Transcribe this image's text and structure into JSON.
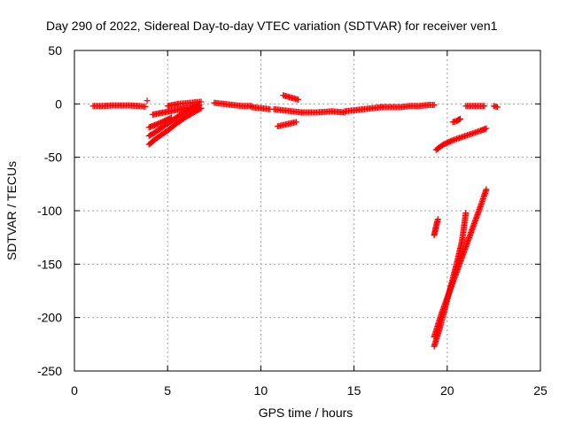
{
  "chart_data": {
    "type": "scatter",
    "title": "Day 290 of 2022, Sidereal Day-to-day VTEC variation (SDTVAR) for receiver ven1",
    "xlabel": "GPS time / hours",
    "ylabel": "SDTVAR / TECUs",
    "xlim": [
      0,
      25
    ],
    "ylim": [
      -250,
      50
    ],
    "grid": true,
    "marker": "plus",
    "marker_color": "#ff0000",
    "x_ticks": [
      {
        "value": 0,
        "label": "0"
      },
      {
        "value": 5,
        "label": "5"
      },
      {
        "value": 10,
        "label": "10"
      },
      {
        "value": 15,
        "label": "15"
      },
      {
        "value": 20,
        "label": "20"
      },
      {
        "value": 25,
        "label": "25"
      }
    ],
    "y_ticks": [
      {
        "value": 50,
        "label": "50"
      },
      {
        "value": 0,
        "label": "0"
      },
      {
        "value": -50,
        "label": "-50"
      },
      {
        "value": -100,
        "label": "-100"
      },
      {
        "value": -150,
        "label": "-150"
      },
      {
        "value": -200,
        "label": "-200"
      },
      {
        "value": -250,
        "label": "-250"
      }
    ],
    "series": [
      {
        "x": [
          1.0,
          1.5,
          2.0,
          2.5,
          3.0,
          3.5,
          3.8
        ],
        "y": [
          -2,
          -2,
          -1.5,
          -1.5,
          -1.5,
          -2,
          -2.5
        ]
      },
      {
        "x": [
          3.9
        ],
        "y": [
          3
        ]
      },
      {
        "x": [
          4.0,
          4.2,
          4.5,
          5.0,
          5.5,
          6.0,
          6.5,
          6.8
        ],
        "y": [
          -38,
          -35,
          -31,
          -25,
          -18,
          -12,
          -7,
          -4
        ]
      },
      {
        "x": [
          4.0,
          4.3,
          4.7,
          5.2,
          5.7,
          6.2,
          6.7
        ],
        "y": [
          -30,
          -27,
          -22,
          -16,
          -10,
          -5,
          -1
        ]
      },
      {
        "x": [
          4.0,
          4.3,
          4.7,
          5.2
        ],
        "y": [
          -22,
          -20,
          -17,
          -13
        ]
      },
      {
        "x": [
          4.2,
          4.8,
          5.4,
          6.0,
          6.6
        ],
        "y": [
          -10,
          -8,
          -6,
          -4,
          -2
        ]
      },
      {
        "x": [
          5.0,
          5.6,
          6.2,
          6.8
        ],
        "y": [
          -2,
          0,
          1,
          2
        ]
      },
      {
        "x": [
          7.5,
          8.0,
          8.5,
          9.0,
          9.5
        ],
        "y": [
          1,
          0,
          -1,
          -2,
          -2
        ]
      },
      {
        "x": [
          9.5,
          10.0,
          10.5
        ],
        "y": [
          -3,
          -4,
          -5
        ]
      },
      {
        "x": [
          10.7,
          11.2,
          11.7,
          12.2
        ],
        "y": [
          -5,
          -6,
          -7,
          -8
        ]
      },
      {
        "x": [
          11.2,
          11.6,
          12.0
        ],
        "y": [
          8,
          6,
          4
        ]
      },
      {
        "x": [
          10.9,
          11.4,
          11.9
        ],
        "y": [
          -21,
          -19,
          -17
        ]
      },
      {
        "x": [
          12.2,
          13.0,
          13.8,
          14.5
        ],
        "y": [
          -8,
          -8,
          -7,
          -8
        ]
      },
      {
        "x": [
          14.5,
          15.0,
          15.5,
          16.0,
          16.5
        ],
        "y": [
          -7,
          -6,
          -5,
          -4,
          -3
        ]
      },
      {
        "x": [
          16.5,
          17.0,
          17.5,
          18.0,
          18.5,
          19.0,
          19.3
        ],
        "y": [
          -3,
          -3,
          -3,
          -2,
          -2,
          -1,
          -1
        ]
      },
      {
        "x": [
          19.4,
          19.8,
          20.3,
          20.8,
          21.3,
          21.8,
          22.1
        ],
        "y": [
          -43,
          -38,
          -34,
          -31,
          -28,
          -25,
          -23
        ]
      },
      {
        "x": [
          20.3,
          20.5,
          20.7
        ],
        "y": [
          -17,
          -16,
          -14
        ]
      },
      {
        "x": [
          21.0,
          21.5,
          22.0
        ],
        "y": [
          -2,
          -2,
          -2
        ]
      },
      {
        "x": [
          22.5,
          22.7
        ],
        "y": [
          -2,
          -3
        ]
      },
      {
        "x": [
          19.3,
          19.4,
          19.5
        ],
        "y": [
          -123,
          -115,
          -108
        ]
      },
      {
        "x": [
          19.3,
          19.7,
          20.2,
          20.7,
          21.2,
          21.7,
          22.1
        ],
        "y": [
          -218,
          -196,
          -172,
          -148,
          -124,
          -100,
          -80
        ]
      },
      {
        "x": [
          19.3,
          19.6,
          19.9,
          20.2,
          20.5,
          20.8,
          21.0
        ],
        "y": [
          -227,
          -210,
          -190,
          -170,
          -150,
          -128,
          -102
        ]
      }
    ]
  }
}
